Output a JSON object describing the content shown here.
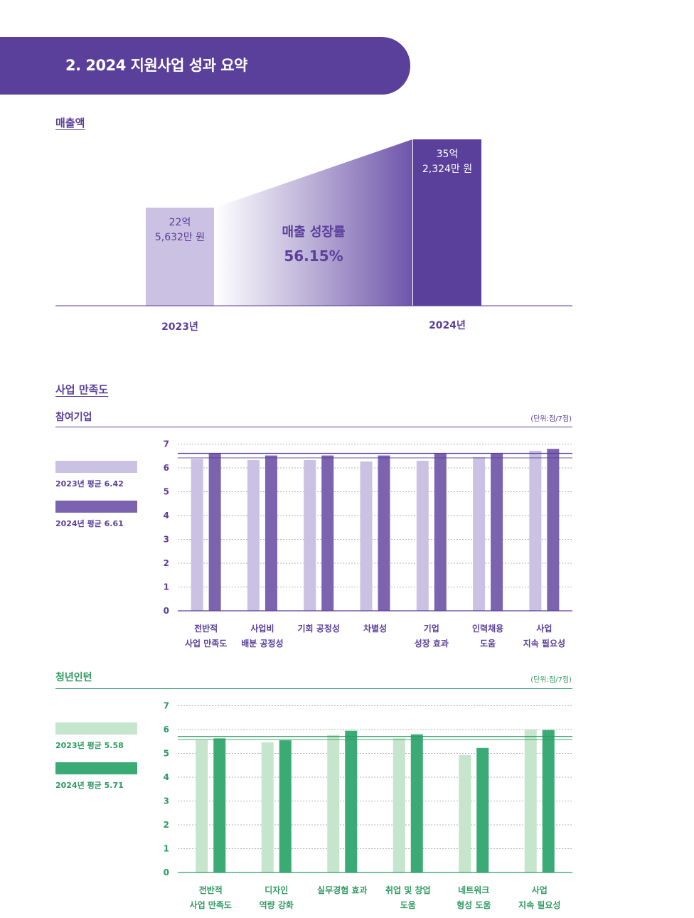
{
  "header": {
    "title": "2. 2024 지원사업 성과 요약"
  },
  "revenue": {
    "section_title": "매출액",
    "bars": [
      {
        "year": "2023년",
        "label_line1": "22억",
        "label_line2": "5,632만 원",
        "value": 22.5632
      },
      {
        "year": "2024년",
        "label_line1": "35억",
        "label_line2": "2,324만 원",
        "value": 35.2324
      }
    ],
    "growth_label": "매출 성장률",
    "growth_value": "56.15%"
  },
  "satisfaction": {
    "section_title": "사업 만족도",
    "panels": [
      {
        "title": "참여기업",
        "unit": "(단위:점/7점)",
        "legend": [
          "2023년 평균 6.42",
          "2024년 평균 6.61"
        ],
        "colors": {
          "light": "#cbc1e2",
          "dark": "#7b63b0",
          "text": "#5a3f9b",
          "line": "#5a3f9b"
        },
        "chart_data": {
          "type": "bar",
          "ylim": [
            0,
            7
          ],
          "yticks": [
            "0",
            "1",
            "2",
            "3",
            "4",
            "5",
            "6",
            "7"
          ],
          "categories": [
            [
              "전반적",
              "사업 만족도"
            ],
            [
              "사업비",
              "배분 공정성"
            ],
            [
              "기회 공정성"
            ],
            [
              "차별성"
            ],
            [
              "기업",
              "성장 효과"
            ],
            [
              "인력채용",
              "도움"
            ],
            [
              "사업",
              "지속 필요성"
            ]
          ],
          "series": [
            {
              "name": "2023년",
              "values": [
                6.38,
                6.33,
                6.33,
                6.27,
                6.3,
                6.45,
                6.72
              ]
            },
            {
              "name": "2024년",
              "values": [
                6.6,
                6.52,
                6.52,
                6.52,
                6.6,
                6.6,
                6.8
              ]
            }
          ],
          "averages": [
            6.42,
            6.61
          ]
        }
      },
      {
        "title": "청년인턴",
        "unit": "(단위:점/7점)",
        "legend": [
          "2023년 평균 5.58",
          "2024년 평균 5.71"
        ],
        "colors": {
          "light": "#c5e5cc",
          "dark": "#3aab74",
          "text": "#2f9a63",
          "line": "#2f9a63"
        },
        "chart_data": {
          "type": "bar",
          "ylim": [
            0,
            7
          ],
          "yticks": [
            "0",
            "1",
            "2",
            "3",
            "4",
            "5",
            "6",
            "7"
          ],
          "categories": [
            [
              "전반적",
              "사업 만족도"
            ],
            [
              "디자인",
              "역량 강화"
            ],
            [
              "실무경험 효과"
            ],
            [
              "취업 및 창업",
              "도움"
            ],
            [
              "네트워크",
              "형성 도움"
            ],
            [
              "사업",
              "지속 필요성"
            ]
          ],
          "series": [
            {
              "name": "2023년",
              "values": [
                5.55,
                5.46,
                5.77,
                5.63,
                4.93,
                6.0
              ]
            },
            {
              "name": "2024년",
              "values": [
                5.63,
                5.55,
                5.95,
                5.8,
                5.23,
                5.98
              ]
            }
          ],
          "averages": [
            5.58,
            5.71
          ]
        }
      }
    ]
  }
}
